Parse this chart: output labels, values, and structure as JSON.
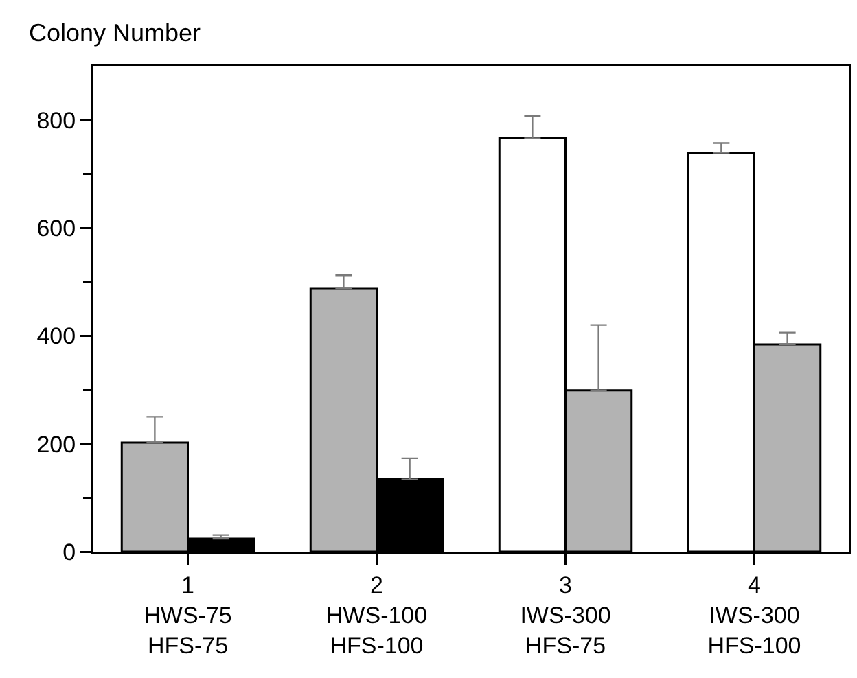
{
  "chart_data": {
    "type": "bar",
    "ylabel": "Colony Number",
    "categories": [
      "1\nHWS-75\nHFS-75",
      "2\nHWS-100\nHFS-100",
      "3\nIWS-300\nHFS-75",
      "4\nIWS-300\nHFS-100"
    ],
    "series": [
      {
        "colors": [
          "#b3b3b3",
          "#b3b3b3",
          "#ffffff",
          "#ffffff"
        ],
        "values": [
          202,
          488,
          766,
          739
        ],
        "errors": [
          [
            202,
            250
          ],
          [
            488,
            512
          ],
          [
            766,
            807
          ],
          [
            739,
            757
          ]
        ]
      },
      {
        "colors": [
          "#000000",
          "#000000",
          "#b3b3b3",
          "#b3b3b3"
        ],
        "values": [
          24,
          134,
          299,
          384
        ],
        "errors": [
          [
            24,
            31
          ],
          [
            134,
            173
          ],
          [
            299,
            420
          ],
          [
            384,
            406
          ]
        ]
      }
    ],
    "ylim": [
      0,
      900
    ],
    "yticks": [
      0,
      200,
      400,
      600,
      800
    ],
    "grid": false
  }
}
